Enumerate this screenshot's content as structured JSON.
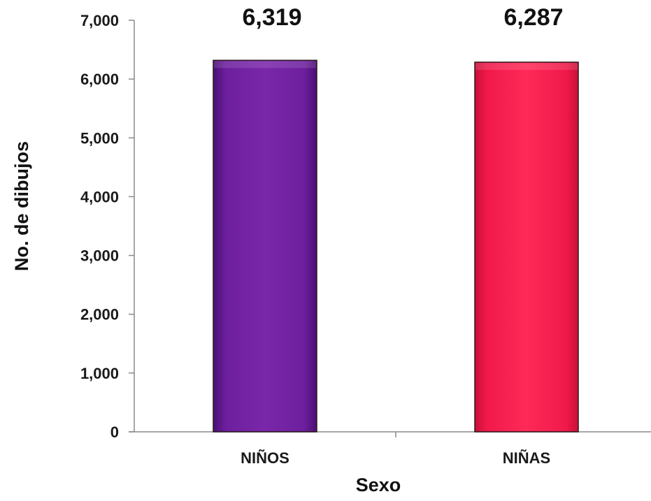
{
  "chart_data": {
    "type": "bar",
    "title": "",
    "xlabel": "Sexo",
    "ylabel": "No. de dibujos",
    "categories": [
      "NIÑOS",
      "NIÑAS"
    ],
    "values": [
      6319,
      6287
    ],
    "data_labels": [
      "6,319",
      "6,287"
    ],
    "ylim": [
      0,
      7000
    ],
    "yticks": [
      0,
      1000,
      2000,
      3000,
      4000,
      5000,
      6000,
      7000
    ],
    "ytick_labels": [
      "0",
      "1,000",
      "2,000",
      "3,000",
      "4,000",
      "5,000",
      "6,000",
      "7,000"
    ],
    "colors": [
      "#6a1b9a",
      "#f0194a"
    ],
    "grid": false,
    "legend": "none"
  }
}
